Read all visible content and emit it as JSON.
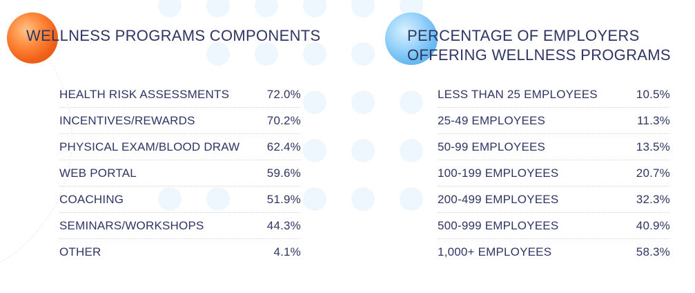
{
  "left": {
    "title": "WELLNESS PROGRAMS COMPONENTS",
    "rows": [
      {
        "label": "HEALTH RISK ASSESSMENTS",
        "value": "72.0%"
      },
      {
        "label": "INCENTIVES/REWARDS",
        "value": "70.2%"
      },
      {
        "label": "PHYSICAL EXAM/BLOOD DRAW",
        "value": "62.4%"
      },
      {
        "label": "WEB PORTAL",
        "value": "59.6%"
      },
      {
        "label": "COACHING",
        "value": "51.9%"
      },
      {
        "label": "SEMINARS/WORKSHOPS",
        "value": "44.3%"
      },
      {
        "label": "OTHER",
        "value": "4.1%"
      }
    ]
  },
  "right": {
    "title_line1": "PERCENTAGE OF EMPLOYERS",
    "title_line2": "OFFERING WELLNESS PROGRAMS",
    "rows": [
      {
        "label": "LESS THAN 25 EMPLOYEES",
        "value": "10.5%"
      },
      {
        "label": "25-49 EMPLOYEES",
        "value": "11.3%"
      },
      {
        "label": "50-99 EMPLOYEES",
        "value": "13.5%"
      },
      {
        "label": "100-199 EMPLOYEES",
        "value": "20.7%"
      },
      {
        "label": "200-499 EMPLOYEES",
        "value": "32.3%"
      },
      {
        "label": "500-999 EMPLOYEES",
        "value": "40.9%"
      },
      {
        "label": "1,000+ EMPLOYEES",
        "value": "58.3%"
      }
    ]
  },
  "colors": {
    "text": "#2f3563",
    "orange_orb": "#f0621a",
    "blue_orb": "#6cbcf2",
    "dot": "#eef7fd"
  }
}
